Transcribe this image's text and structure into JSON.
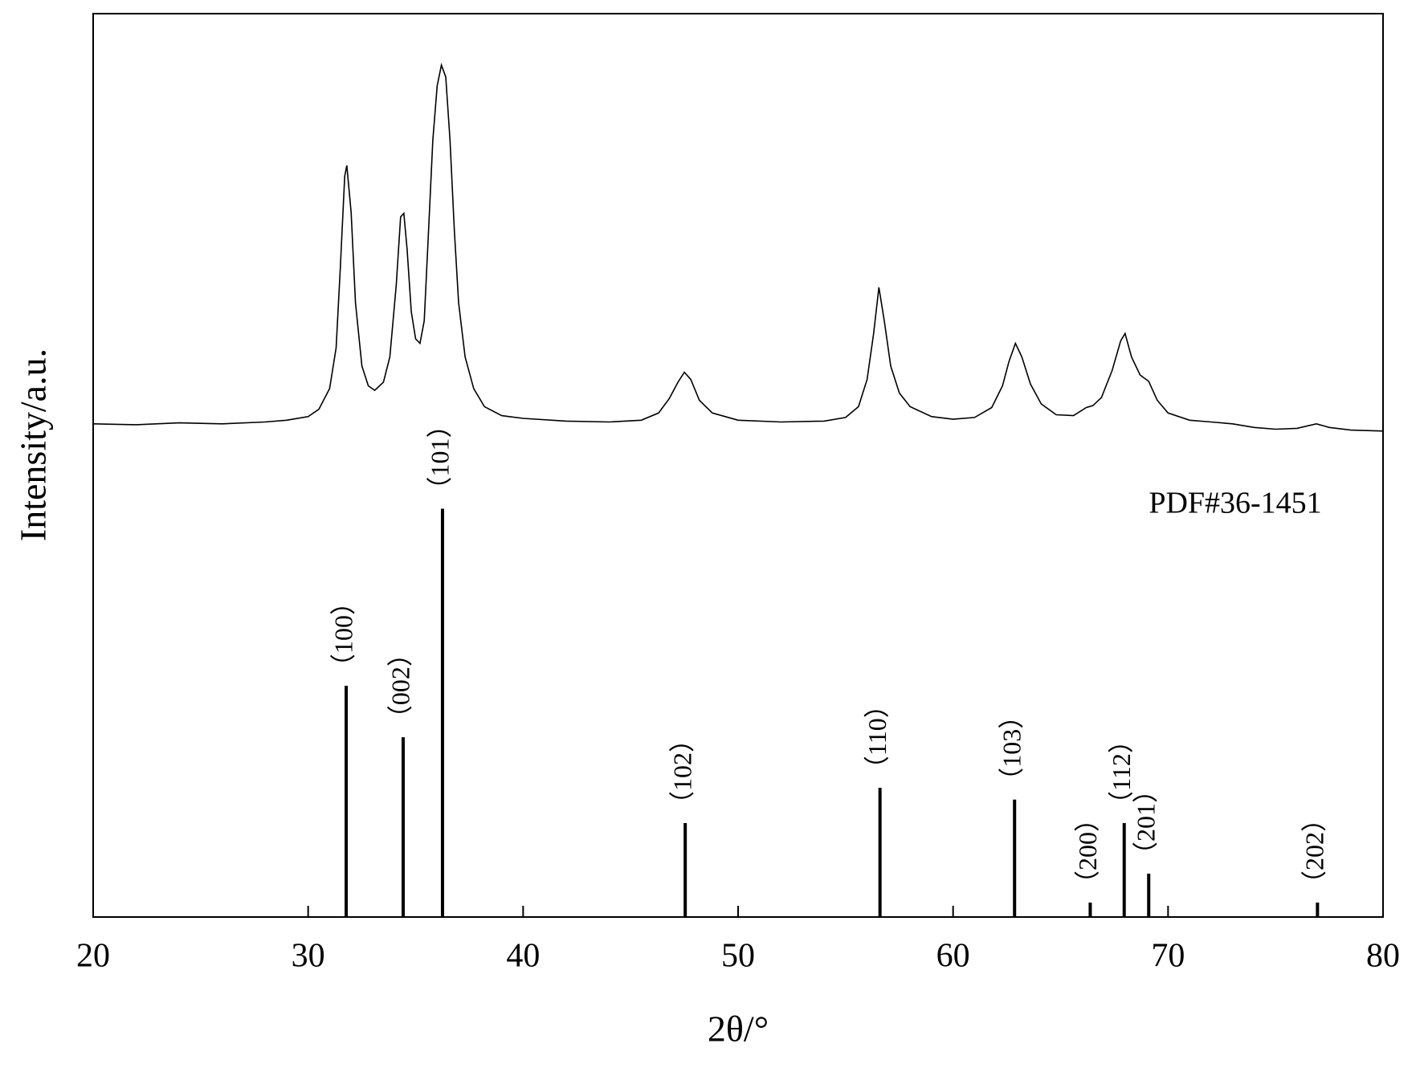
{
  "chart_data": {
    "type": "xrd",
    "x_label": "2θ/°",
    "y_label": "Intensity/a.u.",
    "xlim": [
      20,
      80
    ],
    "xticks": [
      20,
      30,
      40,
      50,
      60,
      70,
      80
    ],
    "ylim": [
      0,
      100
    ],
    "annotation": "PDF#36-1451",
    "series": [
      {
        "type": "line",
        "color": "#000000",
        "x": [
          20,
          22,
          24,
          26,
          28,
          29,
          30,
          30.5,
          31,
          31.3,
          31.5,
          31.7,
          31.8,
          32,
          32.2,
          32.5,
          32.8,
          33.1,
          33.5,
          33.8,
          34.1,
          34.3,
          34.45,
          34.6,
          34.8,
          35,
          35.2,
          35.4,
          35.6,
          35.8,
          36,
          36.2,
          36.4,
          36.6,
          36.8,
          37,
          37.3,
          37.7,
          38.2,
          39,
          40,
          42,
          44,
          45.5,
          46.3,
          46.8,
          47.2,
          47.5,
          47.8,
          48.2,
          48.8,
          50,
          52,
          54,
          55,
          55.6,
          56,
          56.3,
          56.55,
          56.8,
          57.1,
          57.5,
          58,
          59,
          60,
          61,
          61.8,
          62.3,
          62.6,
          62.9,
          63.2,
          63.6,
          64.1,
          64.8,
          65.6,
          66.2,
          66.5,
          66.9,
          67.4,
          67.8,
          68,
          68.3,
          68.7,
          69.1,
          69.5,
          70,
          71,
          72,
          73,
          74,
          75,
          76,
          76.9,
          77.5,
          78.5,
          80
        ],
        "values": [
          54.6,
          54.5,
          54.7,
          54.6,
          54.8,
          55,
          55.4,
          56.2,
          58.5,
          63,
          72,
          82,
          83.2,
          78,
          68,
          61,
          58.8,
          58.3,
          59.2,
          62,
          70,
          77.5,
          77.9,
          74,
          67,
          64,
          63.5,
          66,
          76,
          86,
          92,
          94.3,
          93,
          86,
          76,
          68,
          62,
          58.5,
          56.5,
          55.5,
          55.2,
          54.9,
          54.8,
          55,
          55.8,
          57.4,
          59.2,
          60.3,
          59.5,
          57.2,
          55.8,
          55,
          54.8,
          54.9,
          55.3,
          56.5,
          59.5,
          64.5,
          69.7,
          66,
          61,
          58,
          56.5,
          55.4,
          55.1,
          55.3,
          56.4,
          58.8,
          61.5,
          63.5,
          62,
          59,
          56.8,
          55.6,
          55.5,
          56.4,
          56.6,
          57.5,
          60.5,
          63.8,
          64.6,
          62,
          60,
          59.3,
          57.2,
          55.8,
          55,
          54.8,
          54.6,
          54.2,
          54,
          54.1,
          54.6,
          54.2,
          53.9,
          53.8
        ]
      },
      {
        "type": "stick",
        "color": "#000000",
        "x": [
          31.77,
          34.42,
          36.25,
          47.54,
          56.6,
          62.86,
          66.38,
          67.96,
          69.1,
          76.95
        ],
        "values": [
          25.6,
          19.9,
          45.2,
          10.4,
          14.3,
          13.0,
          1.6,
          10.4,
          4.8,
          1.6
        ],
        "labels": [
          "（100）",
          "（002）",
          "（101）",
          "（102）",
          "（110）",
          "（103）",
          "（200）",
          "（112）",
          "（201）",
          "（202）"
        ]
      }
    ]
  }
}
